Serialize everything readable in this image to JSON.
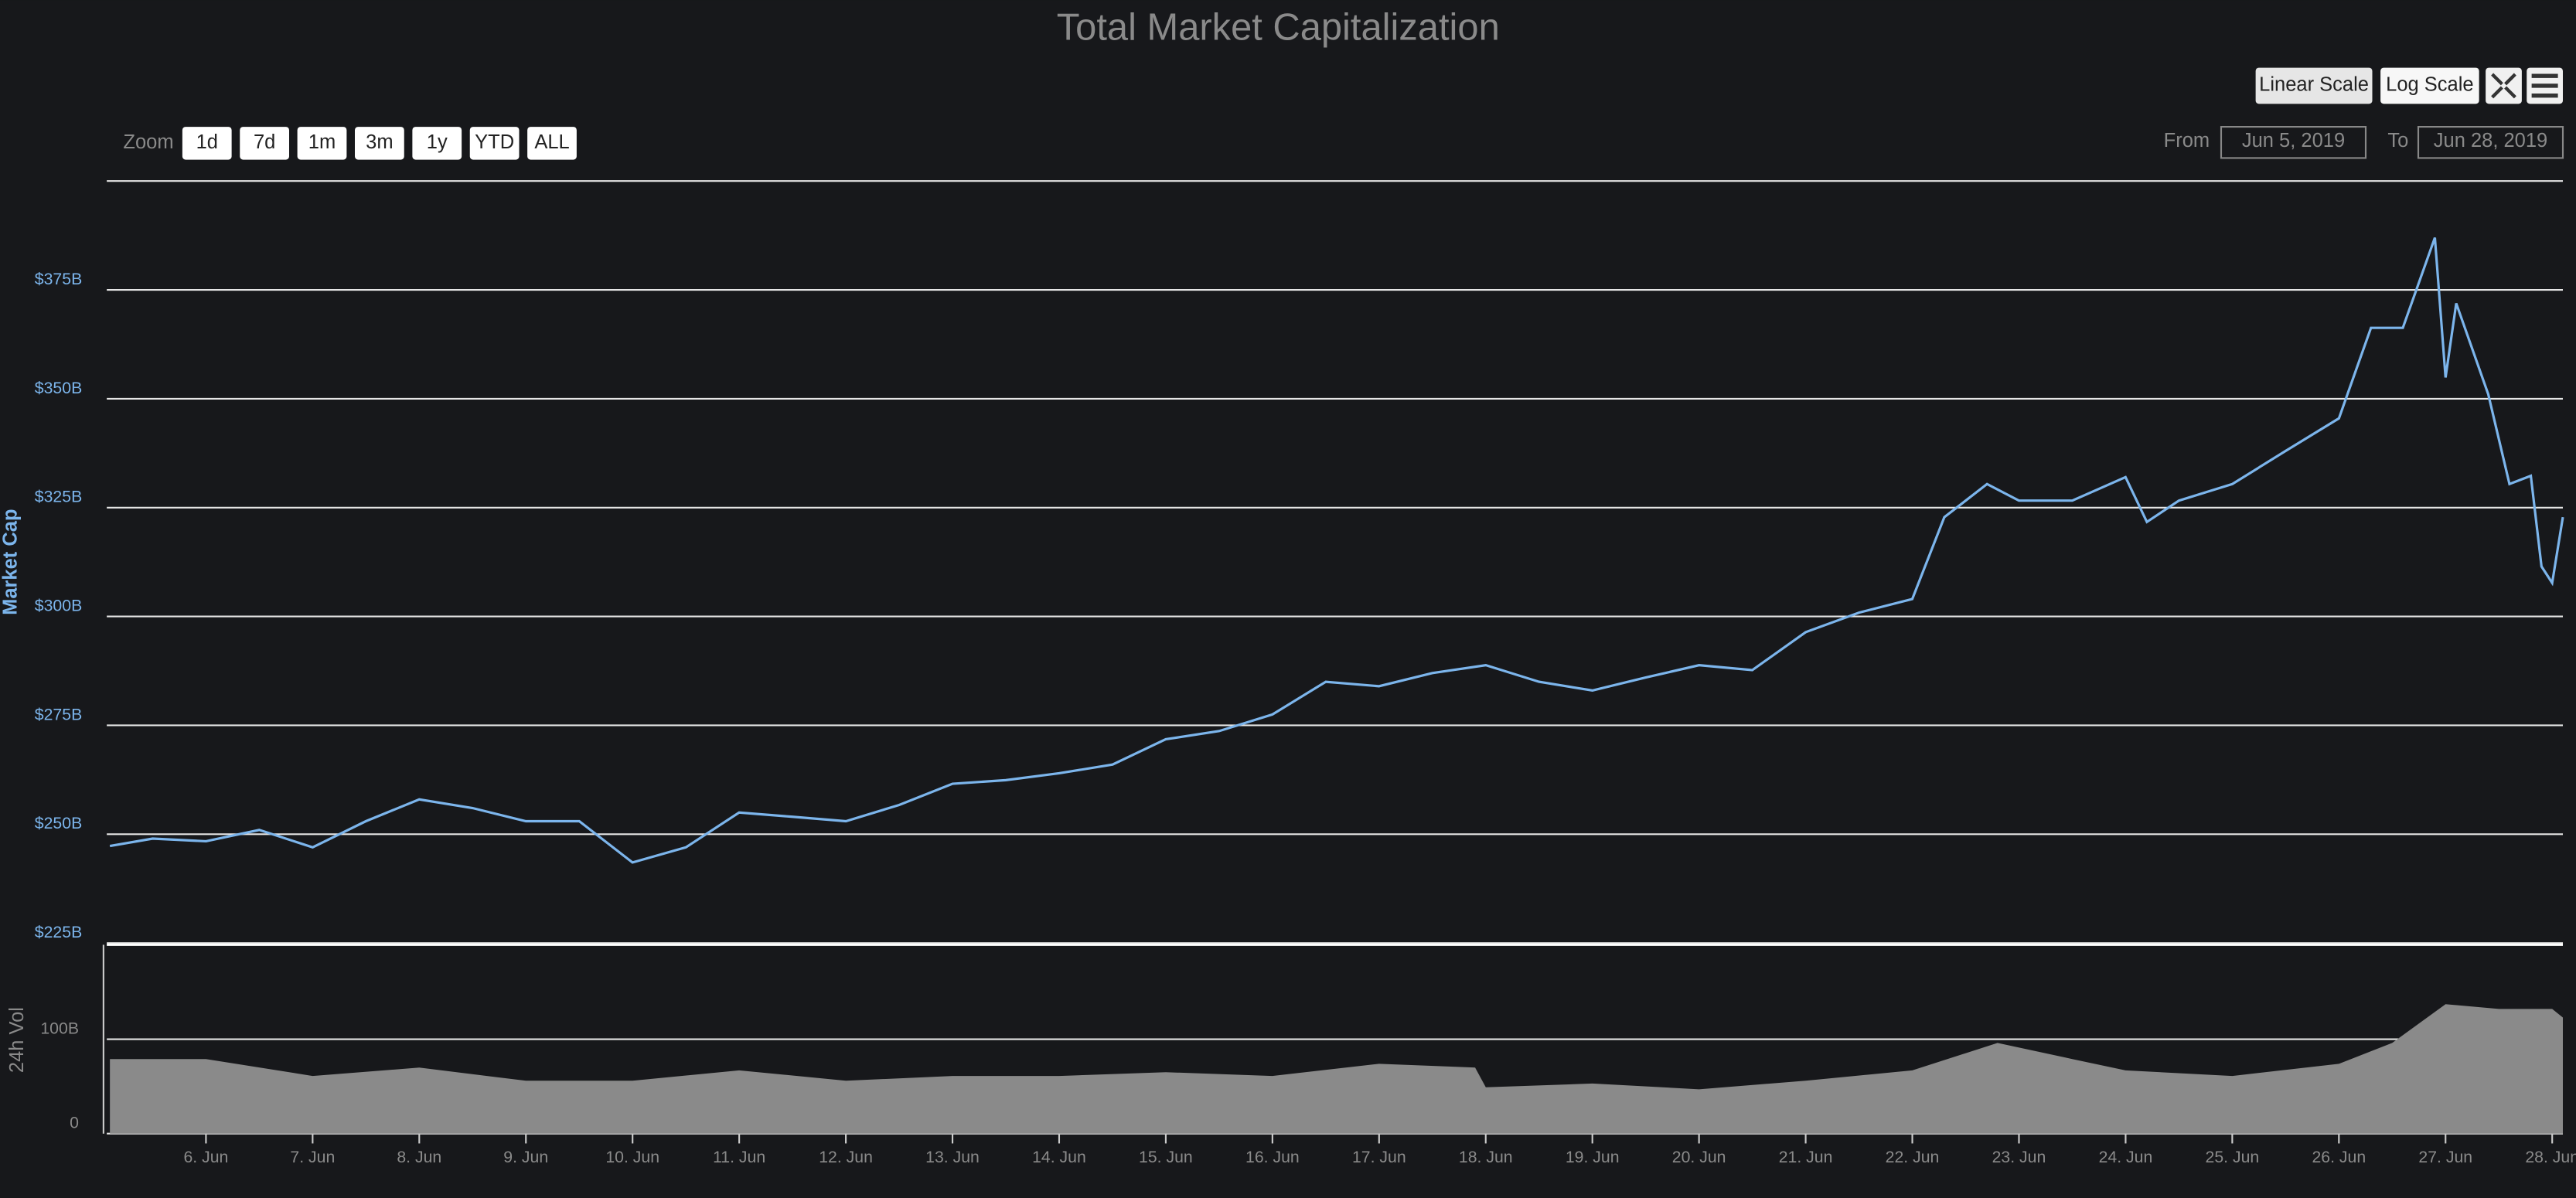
{
  "chart_data": [
    {
      "type": "line",
      "title": "Total Market Capitalization",
      "y_label": "Market Cap",
      "xlim": [
        5.07,
        28.1
      ],
      "ylim": [
        225,
        400
      ],
      "yticks": [
        {
          "value": 225,
          "label": "$225B"
        },
        {
          "value": 250,
          "label": "$250B"
        },
        {
          "value": 275,
          "label": "$275B"
        },
        {
          "value": 300,
          "label": "$300B"
        },
        {
          "value": 325,
          "label": "$325B"
        },
        {
          "value": 350,
          "label": "$350B"
        },
        {
          "value": 375,
          "label": "$375B"
        }
      ],
      "x": [
        5.1,
        5.5,
        6,
        6.5,
        7,
        7.5,
        8,
        8.5,
        9,
        9.5,
        10,
        10.5,
        11,
        11.5,
        12,
        12.5,
        13,
        13.5,
        14,
        14.5,
        15,
        15.5,
        16,
        16.5,
        17,
        17.5,
        18,
        18.5,
        19,
        19.5,
        20,
        20.5,
        21,
        21.5,
        22,
        22.3,
        22.7,
        23,
        23.5,
        24,
        24.2,
        24.5,
        25,
        25.5,
        26,
        26.3,
        26.6,
        26.9,
        27,
        27.1,
        27.4,
        27.6,
        27.8,
        27.9,
        28,
        28.1
      ],
      "series": [
        {
          "color": "#7cb5ec",
          "values": [
            247.3,
            249,
            248.4,
            251,
            247,
            253,
            258,
            256,
            253,
            253,
            243.5,
            247,
            255,
            254,
            253,
            256.7,
            261.6,
            262.4,
            264,
            266,
            271.8,
            273.7,
            277.5,
            285,
            284,
            287,
            288.8,
            285,
            283,
            286,
            288.8,
            287.7,
            296.4,
            300.9,
            304,
            322.8,
            330.4,
            326.6,
            326.6,
            332,
            321.7,
            326.6,
            330.4,
            338,
            345.5,
            366.3,
            366.3,
            387,
            354.9,
            371.9,
            351,
            330.4,
            332.3,
            311.5,
            307.7,
            322.8
          ]
        }
      ],
      "grid": true
    },
    {
      "type": "area",
      "y_label": "24h Vol",
      "xlim": [
        5.07,
        28.1
      ],
      "ylim": [
        0,
        200
      ],
      "yticks": [
        0,
        {
          "value": 100,
          "label": "100B"
        }
      ],
      "xticks": [
        {
          "value": 6,
          "label": "6. Jun"
        },
        {
          "value": 7,
          "label": "7. Jun"
        },
        {
          "value": 8,
          "label": "8. Jun"
        },
        {
          "value": 9,
          "label": "9. Jun"
        },
        {
          "value": 10,
          "label": "10. Jun"
        },
        {
          "value": 11,
          "label": "11. Jun"
        },
        {
          "value": 12,
          "label": "12. Jun"
        },
        {
          "value": 13,
          "label": "13. Jun"
        },
        {
          "value": 14,
          "label": "14. Jun"
        },
        {
          "value": 15,
          "label": "15. Jun"
        },
        {
          "value": 16,
          "label": "16. Jun"
        },
        {
          "value": 17,
          "label": "17. Jun"
        },
        {
          "value": 18,
          "label": "18. Jun"
        },
        {
          "value": 19,
          "label": "19. Jun"
        },
        {
          "value": 20,
          "label": "20. Jun"
        },
        {
          "value": 21,
          "label": "21. Jun"
        },
        {
          "value": 22,
          "label": "22. Jun"
        },
        {
          "value": 23,
          "label": "23. Jun"
        },
        {
          "value": 24,
          "label": "24. Jun"
        },
        {
          "value": 25,
          "label": "25. Jun"
        },
        {
          "value": 26,
          "label": "26. Jun"
        },
        {
          "value": 27,
          "label": "27. Jun"
        },
        {
          "value": 28,
          "label": "28. Jun"
        }
      ],
      "x": [
        5.1,
        6,
        7,
        8,
        9,
        10,
        11,
        12,
        13,
        14,
        15,
        16,
        17,
        17.9,
        18,
        19,
        20,
        21,
        22,
        22.8,
        23.5,
        24,
        25,
        26,
        26.5,
        27,
        27.5,
        28,
        28.1
      ],
      "series": [
        {
          "color": "#8a8a8a",
          "values": [
            79,
            79,
            61,
            70,
            56,
            56,
            67,
            56,
            61,
            61,
            65,
            61,
            74,
            70,
            49,
            53,
            47,
            56,
            67,
            96,
            79,
            67,
            61,
            74,
            96,
            137,
            132,
            132,
            123
          ]
        }
      ],
      "grid": true
    }
  ],
  "controls": {
    "zoom_label": "Zoom",
    "zoom_buttons": [
      "1d",
      "7d",
      "1m",
      "3m",
      "1y",
      "YTD",
      "ALL"
    ],
    "scale_buttons": [
      "Linear Scale",
      "Log Scale"
    ],
    "from_label": "From",
    "from": "Jun 5, 2019",
    "to_label": "To",
    "to": "Jun 28, 2019"
  }
}
